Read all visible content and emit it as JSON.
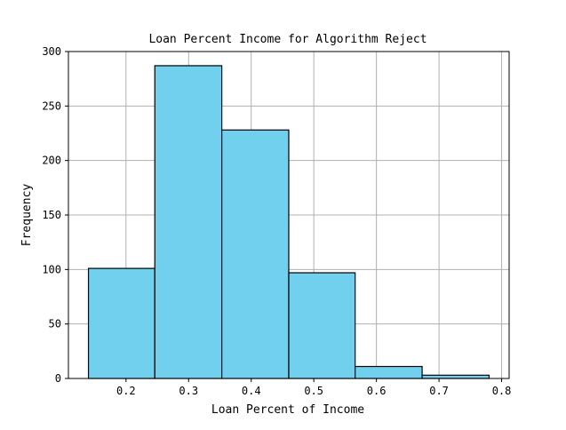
{
  "chart_data": {
    "type": "bar",
    "title": "Loan Percent Income for Algorithm Reject",
    "xlabel": "Loan Percent of Income",
    "ylabel": "Frequency",
    "xlim": [
      0.108,
      0.812
    ],
    "ylim": [
      0,
      300
    ],
    "x_ticks": [
      "0.2",
      "0.3",
      "0.4",
      "0.5",
      "0.6",
      "0.7",
      "0.8"
    ],
    "y_ticks": [
      "0",
      "50",
      "100",
      "150",
      "200",
      "250",
      "300"
    ],
    "bins": [
      {
        "start": 0.14,
        "end": 0.246,
        "value": 101
      },
      {
        "start": 0.246,
        "end": 0.353,
        "value": 287
      },
      {
        "start": 0.353,
        "end": 0.46,
        "value": 228
      },
      {
        "start": 0.46,
        "end": 0.566,
        "value": 97
      },
      {
        "start": 0.566,
        "end": 0.673,
        "value": 11
      },
      {
        "start": 0.673,
        "end": 0.78,
        "value": 3
      }
    ],
    "grid": true,
    "bar_color": "#70d0ee",
    "edge_color": "#000000",
    "grid_color": "#b0b0b0"
  }
}
